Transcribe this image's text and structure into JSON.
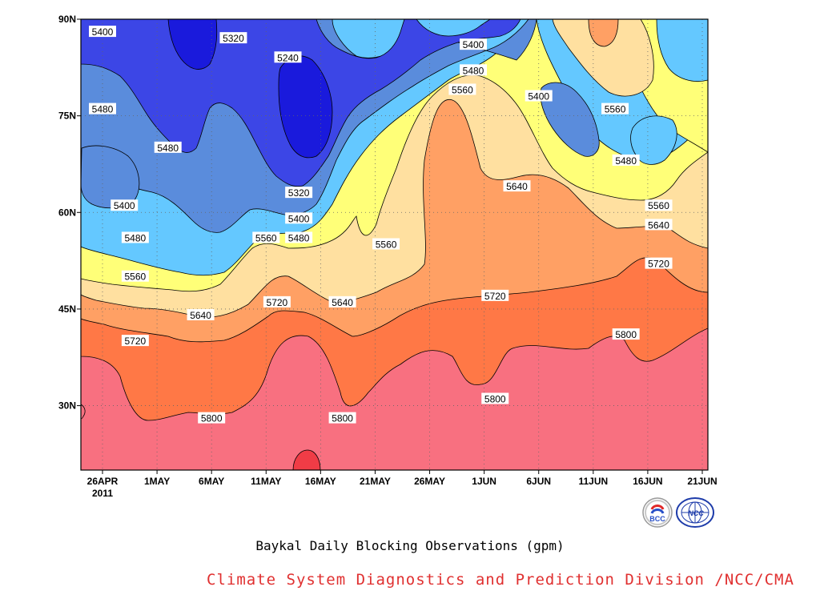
{
  "chart_data": {
    "type": "contour-filled",
    "title": "Baykal Daily Blocking Observations (gpm)",
    "credit": "Climate System Diagnostics and Prediction Division /NCC/CMA",
    "y_ticks": [
      "90N",
      "75N",
      "60N",
      "45N",
      "30N"
    ],
    "y_values": [
      90,
      75,
      60,
      45,
      30
    ],
    "x_ticks": [
      "26APR",
      "1MAY",
      "6MAY",
      "11MAY",
      "16MAY",
      "21MAY",
      "26MAY",
      "1JUN",
      "6JUN",
      "11JUN",
      "16JUN",
      "21JUN"
    ],
    "x_year": "2011",
    "ylim": [
      20,
      90
    ],
    "grid": "dotted",
    "levels": [
      5240,
      5320,
      5400,
      5480,
      5560,
      5640,
      5720,
      5800
    ],
    "level_colors": {
      "lt5240": "#1a1adc",
      "5240": "#3c46e6",
      "5320": "#5a8cdc",
      "5400": "#64c8ff",
      "5480": "#ffff78",
      "5560": "#ffe0a0",
      "5640": "#ffa064",
      "5720": "#ff7846",
      "5800": "#f87080",
      "gt5880": "#f03c46"
    },
    "contour_labels": [
      {
        "text": "5400",
        "x": "26APR",
        "lat": 88
      },
      {
        "text": "5320",
        "x": "8MAY",
        "lat": 87
      },
      {
        "text": "5240",
        "x": "13MAY",
        "lat": 84
      },
      {
        "text": "5400",
        "x": "30MAY",
        "lat": 86
      },
      {
        "text": "5480",
        "x": "30MAY",
        "lat": 82
      },
      {
        "text": "5560",
        "x": "29MAY",
        "lat": 79
      },
      {
        "text": "5400",
        "x": "5JUN",
        "lat": 78
      },
      {
        "text": "5560",
        "x": "12JUN",
        "lat": 76
      },
      {
        "text": "5480",
        "x": "26APR",
        "lat": 76
      },
      {
        "text": "5480",
        "x": "2MAY",
        "lat": 70
      },
      {
        "text": "5480",
        "x": "13JUN",
        "lat": 68
      },
      {
        "text": "5320",
        "x": "14MAY",
        "lat": 63
      },
      {
        "text": "5400",
        "x": "28APR",
        "lat": 61
      },
      {
        "text": "5640",
        "x": "3JUN",
        "lat": 64
      },
      {
        "text": "5400",
        "x": "14MAY",
        "lat": 59
      },
      {
        "text": "5560",
        "x": "16JUN",
        "lat": 61
      },
      {
        "text": "5480",
        "x": "29APR",
        "lat": 56
      },
      {
        "text": "5560",
        "x": "11MAY",
        "lat": 56
      },
      {
        "text": "5480",
        "x": "14MAY",
        "lat": 56
      },
      {
        "text": "5560",
        "x": "22MAY",
        "lat": 55
      },
      {
        "text": "5640",
        "x": "16JUN",
        "lat": 58
      },
      {
        "text": "5560",
        "x": "29APR",
        "lat": 50
      },
      {
        "text": "5720",
        "x": "16JUN",
        "lat": 52
      },
      {
        "text": "5720",
        "x": "12MAY",
        "lat": 46
      },
      {
        "text": "5640",
        "x": "18MAY",
        "lat": 46
      },
      {
        "text": "5720",
        "x": "1JUN",
        "lat": 47
      },
      {
        "text": "5640",
        "x": "5MAY",
        "lat": 44
      },
      {
        "text": "5720",
        "x": "29APR",
        "lat": 40
      },
      {
        "text": "5800",
        "x": "13JUN",
        "lat": 41
      },
      {
        "text": "5800",
        "x": "1JUN",
        "lat": 31
      },
      {
        "text": "5800",
        "x": "6MAY",
        "lat": 28
      },
      {
        "text": "5800",
        "x": "18MAY",
        "lat": 28
      }
    ]
  },
  "logos": {
    "left": {
      "icon": "bcc-logo-icon",
      "text": "BCC"
    },
    "right": {
      "icon": "ncc-logo-icon",
      "text": "NCC"
    }
  }
}
